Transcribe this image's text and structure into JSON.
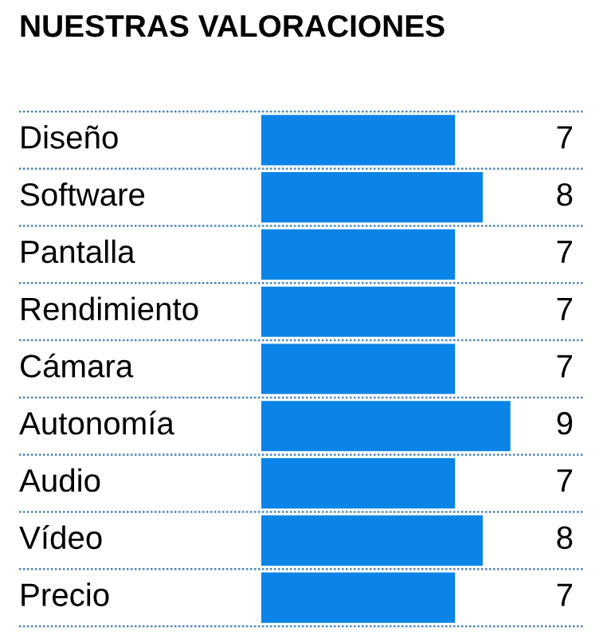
{
  "chart_data": {
    "type": "bar",
    "orientation": "horizontal",
    "title": "NUESTRAS VALORACIONES",
    "categories": [
      "Diseño",
      "Software",
      "Pantalla",
      "Rendimiento",
      "Cámara",
      "Autonomía",
      "Audio",
      "Vídeo",
      "Precio"
    ],
    "values": [
      7,
      8,
      7,
      7,
      7,
      9,
      7,
      8,
      7
    ],
    "color": "#0a84e6",
    "data_labels": true
  }
}
